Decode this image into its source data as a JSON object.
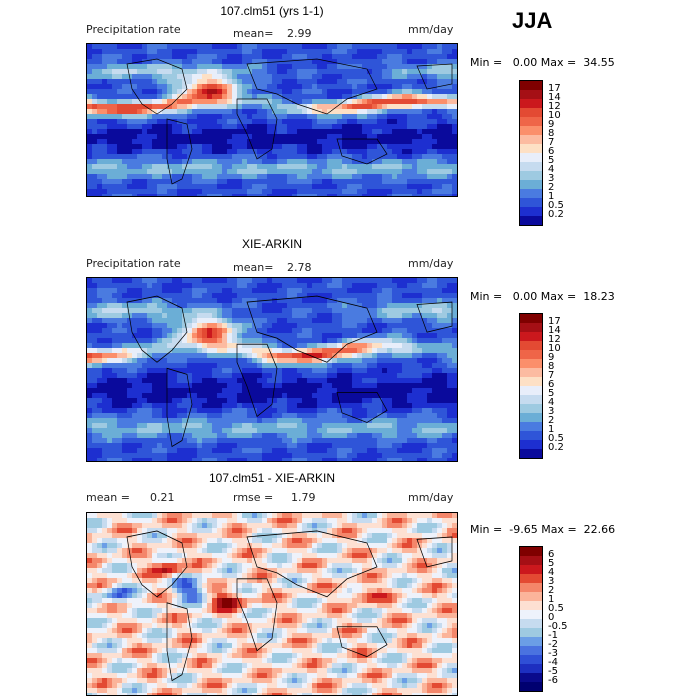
{
  "season": "JJA",
  "panels": [
    {
      "title": "107.clm51 (yrs 1-1)",
      "left_label": "Precipitation rate",
      "stat1_label": "mean=",
      "stat1_value": "2.99",
      "stat2_label": "",
      "stat2_value": "",
      "units": "mm/day",
      "min_label": "Min =",
      "min_value": "0.00",
      "max_label": "Max =",
      "max_value": "34.55",
      "colorbar_labels": [
        "17",
        "14",
        "12",
        "10",
        "9",
        "8",
        "7",
        "6",
        "5",
        "4",
        "3",
        "2",
        "1",
        "0.5",
        "0.2"
      ]
    },
    {
      "title": "XIE-ARKIN",
      "left_label": "Precipitation rate",
      "stat1_label": "mean=",
      "stat1_value": "2.78",
      "stat2_label": "",
      "stat2_value": "",
      "units": "mm/day",
      "min_label": "Min =",
      "min_value": "0.00",
      "max_label": "Max =",
      "max_value": "18.23",
      "colorbar_labels": [
        "17",
        "14",
        "12",
        "10",
        "9",
        "8",
        "7",
        "6",
        "5",
        "4",
        "3",
        "2",
        "1",
        "0.5",
        "0.2"
      ]
    },
    {
      "title": "107.clm51 - XIE-ARKIN",
      "left_label": "",
      "stat1_label": "mean =",
      "stat1_value": "0.21",
      "stat2_label": "rmse =",
      "stat2_value": "1.79",
      "units": "mm/day",
      "min_label": "Min =",
      "min_value": "-9.65",
      "max_label": "Max =",
      "max_value": "22.66",
      "colorbar_labels": [
        "6",
        "5",
        "4",
        "3",
        "2",
        "1",
        "0.5",
        "0",
        "-0.5",
        "-1",
        "-2",
        "-3",
        "-4",
        "-5",
        "-6"
      ]
    }
  ],
  "colors": {
    "precip_scale": [
      "#7f0000",
      "#a50f15",
      "#cb181d",
      "#e34a33",
      "#ef6548",
      "#fb8f6b",
      "#fcbba1",
      "#fde0c5",
      "#e8eefa",
      "#c6dbef",
      "#9ecae1",
      "#6baed6",
      "#4a7be0",
      "#2f55d8",
      "#1d2fd0",
      "#0a0a9c"
    ],
    "diff_scale": [
      "#7f0000",
      "#a50f15",
      "#cb181d",
      "#e34a33",
      "#f4866a",
      "#fbb49a",
      "#fde0d2",
      "#eef2fb",
      "#c6dbef",
      "#9ecae1",
      "#6b9ee6",
      "#4a72e0",
      "#2f4fd6",
      "#1d2fc0",
      "#0a0a8c",
      "#000070"
    ],
    "land_outline": "#000000"
  }
}
